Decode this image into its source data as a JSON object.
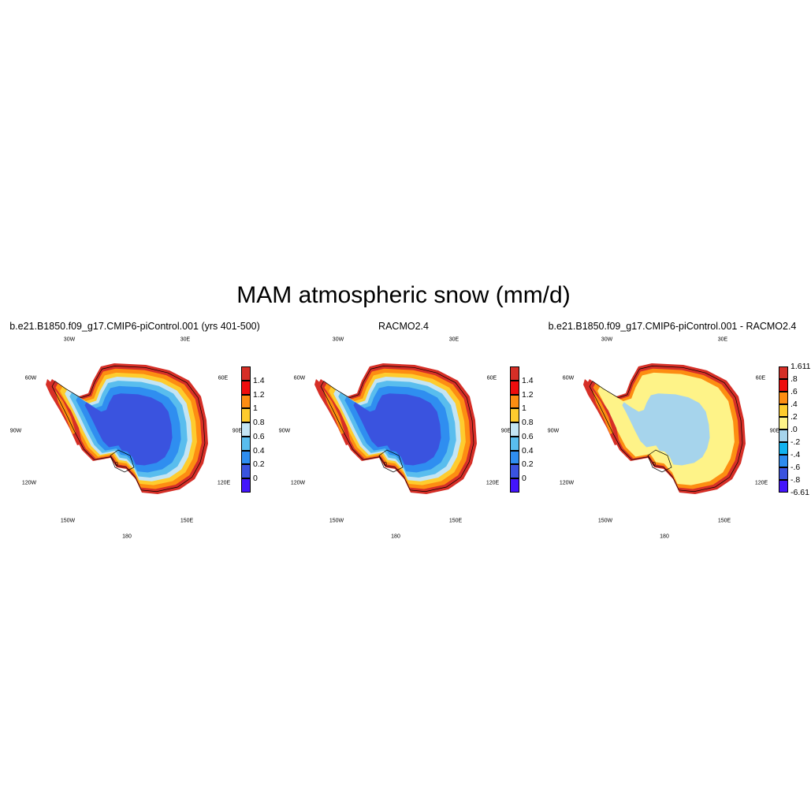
{
  "title": "MAM atmospheric snow (mm/d)",
  "lon_labels": [
    "30W",
    "30E",
    "60W",
    "60E",
    "90W",
    "90E",
    "120W",
    "120E",
    "150W",
    "150E",
    "180"
  ],
  "panels": [
    {
      "title": "b.e21.B1850.f09_g17.CMIP6-piControl.001 (yrs 401-500)",
      "colorbar": {
        "labels": [
          "1.4",
          "1.2",
          "1",
          "0.8",
          "0.6",
          "0.4",
          "0.2",
          "0"
        ],
        "colors": [
          "#d62f27",
          "#ee0d0d",
          "#fd8d12",
          "#fecc2e",
          "#c4e5f4",
          "#59bdee",
          "#2f8ef0",
          "#3a53df",
          "#4315fb"
        ]
      },
      "contour_label": "0",
      "palette": {
        "edge": "#d62f27",
        "ring1": "#fd8d12",
        "ring2": "#fecc2e",
        "ring3": "#c4e5f4",
        "ring4": "#59bdee",
        "inner": "#2f8ef0",
        "core": "#3a53df"
      }
    },
    {
      "title": "RACMO2.4",
      "colorbar": {
        "labels": [
          "1.4",
          "1.2",
          "1",
          "0.8",
          "0.6",
          "0.4",
          "0.2",
          "0"
        ],
        "colors": [
          "#d62f27",
          "#ee0d0d",
          "#fd8d12",
          "#fecc2e",
          "#c4e5f4",
          "#59bdee",
          "#2f8ef0",
          "#3a53df",
          "#4315fb"
        ]
      },
      "contour_label": "0",
      "palette": {
        "edge": "#d62f27",
        "ring1": "#fd8d12",
        "ring2": "#fecc2e",
        "ring3": "#c4e5f4",
        "ring4": "#59bdee",
        "inner": "#2f8ef0",
        "core": "#3a53df"
      }
    },
    {
      "title": "b.e21.B1850.f09_g17.CMIP6-piControl.001 - RACMO2.4",
      "colorbar": {
        "labels": [
          "1.611",
          ".8",
          ".6",
          ".4",
          ".2",
          ".0",
          "-.2",
          "-.4",
          "-.6",
          "-.8",
          "-6.61"
        ],
        "colors": [
          "#d62f27",
          "#ee0d0d",
          "#fd8d12",
          "#fecc2e",
          "#fef388",
          "#a6d4ec",
          "#11b2ef",
          "#2d8bef",
          "#3a53df",
          "#4315fb"
        ]
      },
      "contour_label": "0",
      "palette": {
        "edge": "#d62f27",
        "ring1": "#fd8d12",
        "ring2": "#fef388",
        "ring3": "#fef388",
        "ring4": "#fef388",
        "inner": "#fef388",
        "core": "#a6d4ec"
      }
    }
  ]
}
